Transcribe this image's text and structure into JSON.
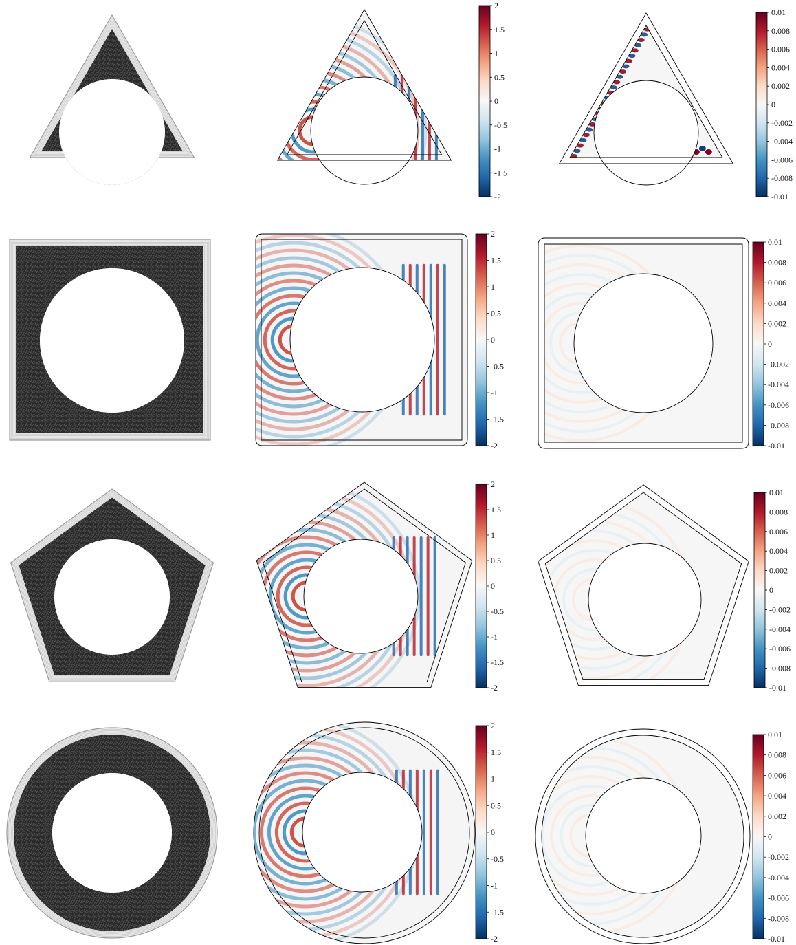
{
  "figure": {
    "rows": [
      {
        "shape": "triangle",
        "sides": 3
      },
      {
        "shape": "square",
        "sides": 4
      },
      {
        "shape": "pentagon",
        "sides": 5
      },
      {
        "shape": "circle",
        "sides": 0
      }
    ],
    "columns": [
      "mesh",
      "field",
      "error"
    ]
  },
  "colorbars": {
    "field": {
      "ticks": [
        "2",
        "1.5",
        "1",
        "0.5",
        "0",
        "-0.5",
        "-1",
        "-1.5",
        "-2"
      ]
    },
    "error": {
      "ticks": [
        "0.01",
        "0.008",
        "0.006",
        "0.004",
        "0.002",
        "0",
        "-0.002",
        "-0.004",
        "-0.006",
        "-0.008",
        "-0.01"
      ]
    }
  },
  "colors": {
    "map": [
      "#053061",
      "#2166ac",
      "#4393c3",
      "#92c5de",
      "#d1e5f0",
      "#f7f7f7",
      "#fddbc7",
      "#f4a582",
      "#d6604d",
      "#b2182b",
      "#67001f"
    ],
    "mesh_fill": "#2a2a2a",
    "pml_line": "#9a9a9a"
  }
}
